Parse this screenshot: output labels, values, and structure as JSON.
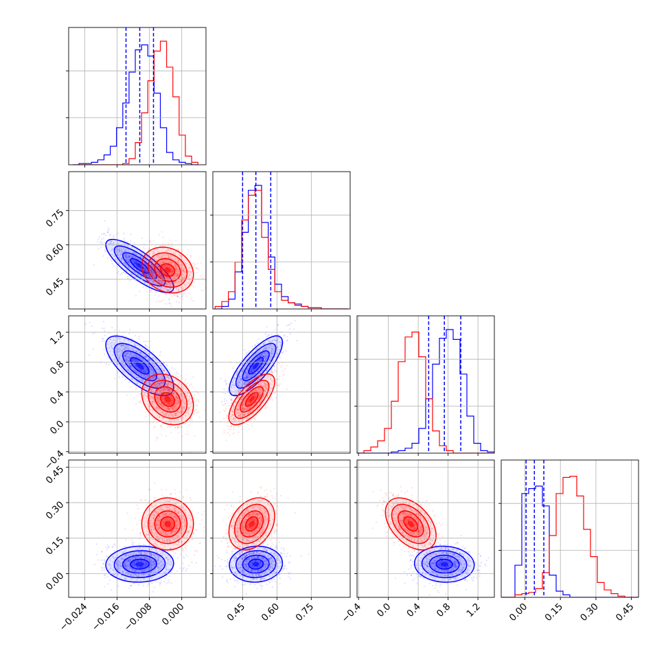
{
  "chart_data": {
    "type": "corner",
    "grid": true,
    "colors": {
      "series_a": "#0000ff",
      "series_b": "#ff0000"
    },
    "series": [
      {
        "color": "#0000ff",
        "style": "histogram + contours + scatter",
        "quantile_lines": "dashed"
      },
      {
        "color": "#ff0000",
        "style": "histogram + contours + scatter"
      }
    ],
    "axes": [
      {
        "range": [
          -0.028,
          0.006
        ],
        "ticks": [
          "−0.024",
          "−0.016",
          "−0.008",
          "0.000"
        ],
        "tick_values": [
          -0.024,
          -0.016,
          -0.008,
          0.0
        ]
      },
      {
        "range": [
          0.32,
          0.92
        ],
        "ticks": [
          "0.45",
          "0.60",
          "0.75"
        ],
        "tick_values": [
          0.45,
          0.6,
          0.75
        ]
      },
      {
        "range": [
          -0.42,
          1.42
        ],
        "ticks": [
          "−0.4",
          "0.0",
          "0.4",
          "0.8",
          "1.2"
        ],
        "tick_values": [
          -0.4,
          0.0,
          0.4,
          0.8,
          1.2
        ]
      },
      {
        "range": [
          -0.1,
          0.48
        ],
        "ticks": [
          "0.00",
          "0.15",
          "0.30",
          "0.45"
        ],
        "tick_values": [
          0.0,
          0.15,
          0.3,
          0.45
        ]
      }
    ],
    "quantiles_series_a": [
      [
        -0.0138,
        -0.0104,
        -0.007
      ],
      [
        0.45,
        0.508,
        0.573
      ],
      [
        0.54,
        0.75,
        0.97
      ],
      [
        0.005,
        0.04,
        0.08
      ]
    ],
    "histograms": [
      {
        "edges": [
          -0.027,
          0.004
        ],
        "series_a": [
          0.0,
          0.01,
          0.01,
          0.02,
          0.04,
          0.08,
          0.15,
          0.3,
          0.5,
          0.75,
          0.93,
          0.97,
          0.88,
          0.58,
          0.3,
          0.1,
          0.04,
          0.02,
          0.01,
          0.0
        ],
        "series_b": [
          0.0,
          0.0,
          0.0,
          0.0,
          0.0,
          0.0,
          0.0,
          0.0,
          0.01,
          0.05,
          0.18,
          0.42,
          0.68,
          0.92,
          1.0,
          0.79,
          0.55,
          0.24,
          0.07,
          0.02
        ]
      },
      {
        "edges": [
          0.33,
          0.91
        ],
        "series_a": [
          0.0,
          0.02,
          0.08,
          0.3,
          0.62,
          0.96,
          1.0,
          0.7,
          0.42,
          0.2,
          0.1,
          0.05,
          0.04,
          0.02,
          0.01,
          0.01,
          0.0,
          0.0,
          0.0,
          0.0
        ],
        "series_b": [
          0.02,
          0.06,
          0.14,
          0.38,
          0.72,
          0.92,
          0.96,
          0.58,
          0.32,
          0.14,
          0.07,
          0.05,
          0.03,
          0.02,
          0.01,
          0.01,
          0.0,
          0.0,
          0.0,
          0.0
        ]
      },
      {
        "edges": [
          -0.42,
          1.42
        ],
        "series_a": [
          0.0,
          0.0,
          0.0,
          0.0,
          0.0,
          0.01,
          0.02,
          0.04,
          0.08,
          0.2,
          0.44,
          0.72,
          0.93,
          1.0,
          0.92,
          0.64,
          0.3,
          0.08,
          0.02,
          0.01
        ],
        "series_b": [
          0.0,
          0.02,
          0.05,
          0.1,
          0.2,
          0.42,
          0.74,
          0.94,
          0.98,
          0.78,
          0.44,
          0.18,
          0.06,
          0.02,
          0.0,
          0.0,
          0.0,
          0.0,
          0.0,
          0.0
        ]
      },
      {
        "edges": [
          -0.1,
          0.48
        ],
        "series_a": [
          0.0,
          0.0,
          0.26,
          0.84,
          0.88,
          0.9,
          0.74,
          0.18,
          0.05,
          0.02,
          0.0,
          0.0,
          0.0,
          0.0,
          0.0,
          0.0,
          0.0,
          0.0,
          0.0,
          0.0
        ],
        "series_b": [
          0.0,
          0.0,
          0.02,
          0.03,
          0.04,
          0.07,
          0.2,
          0.5,
          0.84,
          0.97,
          0.98,
          0.82,
          0.55,
          0.33,
          0.12,
          0.06,
          0.03,
          0.01,
          0.0,
          0.0
        ]
      }
    ],
    "blobs": {
      "series_a": {
        "0": {
          "mean": -0.0104,
          "sd": 0.0042
        },
        "1": {
          "mean": 0.508,
          "sd": 0.058
        },
        "2": {
          "mean": 0.75,
          "sd": 0.2
        },
        "3": {
          "mean": 0.04,
          "sd": 0.038
        },
        "corr": {
          "1-0": -0.8,
          "2-0": -0.7,
          "2-1": 0.78,
          "3-0": 0.05,
          "3-1": 0.05,
          "3-2": -0.05
        }
      },
      "series_b": {
        "0": {
          "mean": -0.0035,
          "sd": 0.0032
        },
        "1": {
          "mean": 0.49,
          "sd": 0.05
        },
        "2": {
          "mean": 0.3,
          "sd": 0.17
        },
        "3": {
          "mean": 0.21,
          "sd": 0.055
        },
        "corr": {
          "1-0": -0.2,
          "2-0": -0.25,
          "2-1": 0.7,
          "3-0": 0.0,
          "3-1": 0.3,
          "3-2": -0.45
        }
      }
    }
  }
}
